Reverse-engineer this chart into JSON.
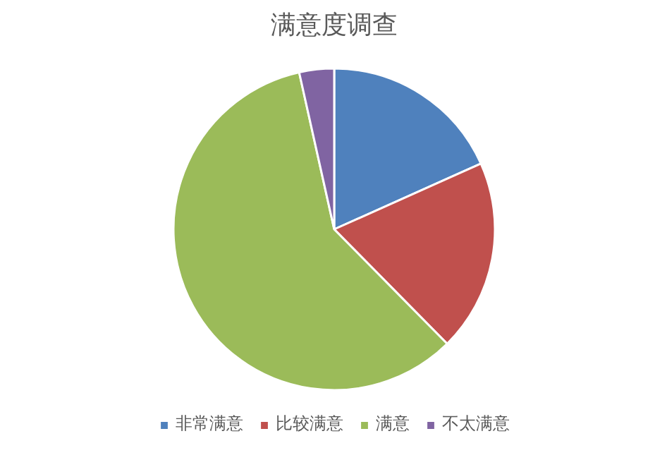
{
  "chart_data": {
    "type": "pie",
    "title": "满意度调查",
    "categories": [
      "非常满意",
      "比较满意",
      "满意",
      "不太满意"
    ],
    "values": [
      18.3,
      19.3,
      58.9,
      3.5
    ],
    "colors": [
      "#4f81bd",
      "#c0504d",
      "#9bbb59",
      "#8064a2"
    ],
    "legend": "bottom"
  }
}
